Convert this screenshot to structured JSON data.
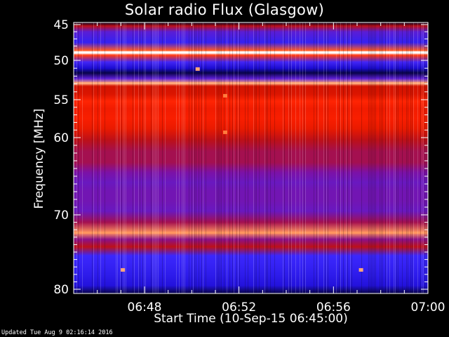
{
  "chart_data": {
    "type": "heatmap",
    "title": "Solar radio Flux (Glasgow)",
    "xlabel": "Start Time (10-Sep-15 06:45:00)",
    "ylabel": "Frequency [MHz]",
    "x_range_minutes": [
      "06:45",
      "07:00"
    ],
    "y_range_mhz": [
      45,
      80
    ],
    "x_ticks": [
      "06:48",
      "06:52",
      "06:56",
      "07:00"
    ],
    "y_ticks": [
      45,
      50,
      55,
      60,
      70,
      80
    ],
    "y_scale": "nonlinear",
    "colormap": [
      "#000000",
      "#1a0ad0",
      "#3c28ff",
      "#8010a0",
      "#c81000",
      "#ff2000",
      "#ff8040",
      "#ffffff"
    ],
    "bands": [
      {
        "freq_mhz": 45.2,
        "intensity": 0.55
      },
      {
        "freq_mhz": 46.0,
        "intensity": 0.35
      },
      {
        "freq_mhz": 47.5,
        "intensity": 0.25
      },
      {
        "freq_mhz": 48.6,
        "intensity": 0.8
      },
      {
        "freq_mhz": 48.9,
        "intensity": 1.0
      },
      {
        "freq_mhz": 49.3,
        "intensity": 0.75
      },
      {
        "freq_mhz": 50.2,
        "intensity": 0.3
      },
      {
        "freq_mhz": 51.0,
        "intensity": 0.15
      },
      {
        "freq_mhz": 51.6,
        "intensity": 0.05
      },
      {
        "freq_mhz": 52.3,
        "intensity": 0.35
      },
      {
        "freq_mhz": 52.9,
        "intensity": 0.9
      },
      {
        "freq_mhz": 53.3,
        "intensity": 0.6
      },
      {
        "freq_mhz": 54.3,
        "intensity": 0.62
      },
      {
        "freq_mhz": 55.2,
        "intensity": 0.72
      },
      {
        "freq_mhz": 56.2,
        "intensity": 0.68
      },
      {
        "freq_mhz": 57.5,
        "intensity": 0.7
      },
      {
        "freq_mhz": 58.8,
        "intensity": 0.66
      },
      {
        "freq_mhz": 60.3,
        "intensity": 0.55
      },
      {
        "freq_mhz": 61.8,
        "intensity": 0.5
      },
      {
        "freq_mhz": 63.2,
        "intensity": 0.5
      },
      {
        "freq_mhz": 64.5,
        "intensity": 0.42
      },
      {
        "freq_mhz": 65.8,
        "intensity": 0.38
      },
      {
        "freq_mhz": 67.0,
        "intensity": 0.4
      },
      {
        "freq_mhz": 68.2,
        "intensity": 0.4
      },
      {
        "freq_mhz": 69.5,
        "intensity": 0.38
      },
      {
        "freq_mhz": 71.0,
        "intensity": 0.5
      },
      {
        "freq_mhz": 72.4,
        "intensity": 0.88
      },
      {
        "freq_mhz": 73.3,
        "intensity": 0.45
      },
      {
        "freq_mhz": 74.3,
        "intensity": 0.55
      },
      {
        "freq_mhz": 75.5,
        "intensity": 0.28
      },
      {
        "freq_mhz": 77.0,
        "intensity": 0.25
      },
      {
        "freq_mhz": 78.3,
        "intensity": 0.22
      },
      {
        "freq_mhz": 79.5,
        "intensity": 0.18
      }
    ],
    "bursts": [
      {
        "time": "06:50:15",
        "freq_mhz": 51.1,
        "intensity": 0.9
      },
      {
        "time": "06:51:25",
        "freq_mhz": 54.5,
        "intensity": 0.85
      },
      {
        "time": "06:51:25",
        "freq_mhz": 59.3,
        "intensity": 0.85
      },
      {
        "time": "06:47:05",
        "freq_mhz": 77.4,
        "intensity": 0.9
      },
      {
        "time": "06:57:10",
        "freq_mhz": 77.4,
        "intensity": 0.9
      }
    ]
  },
  "footer": "Updated Tue Aug  9 02:16:14 2016"
}
